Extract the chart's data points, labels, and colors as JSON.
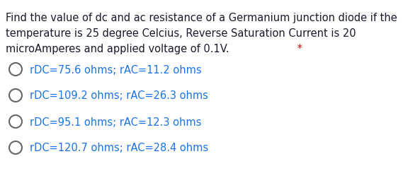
{
  "question_lines": [
    "Find the value of dc and ac resistance of a Germanium junction diode if the",
    "temperature is 25 degree Celcius, Reverse Saturation Current is 20",
    "microAmperes and applied voltage of 0.1V."
  ],
  "asterisk": " *",
  "asterisk_color": "#cc0000",
  "question_color": "#1a1a2e",
  "options": [
    "rDC=75.6 ohms; rAC=11.2 ohms",
    "rDC=109.2 ohms; rAC=26.3 ohms",
    "rDC=95.1 ohms; rAC=12.3 ohms",
    "rDC=120.7 ohms; rAC=28.4 ohms"
  ],
  "option_color": "#1a73e8",
  "circle_edge_color": "#666666",
  "background_color": "#ffffff",
  "font_size_question": 10.5,
  "font_size_options": 10.5,
  "fig_width": 5.69,
  "fig_height": 2.53,
  "dpi": 100
}
